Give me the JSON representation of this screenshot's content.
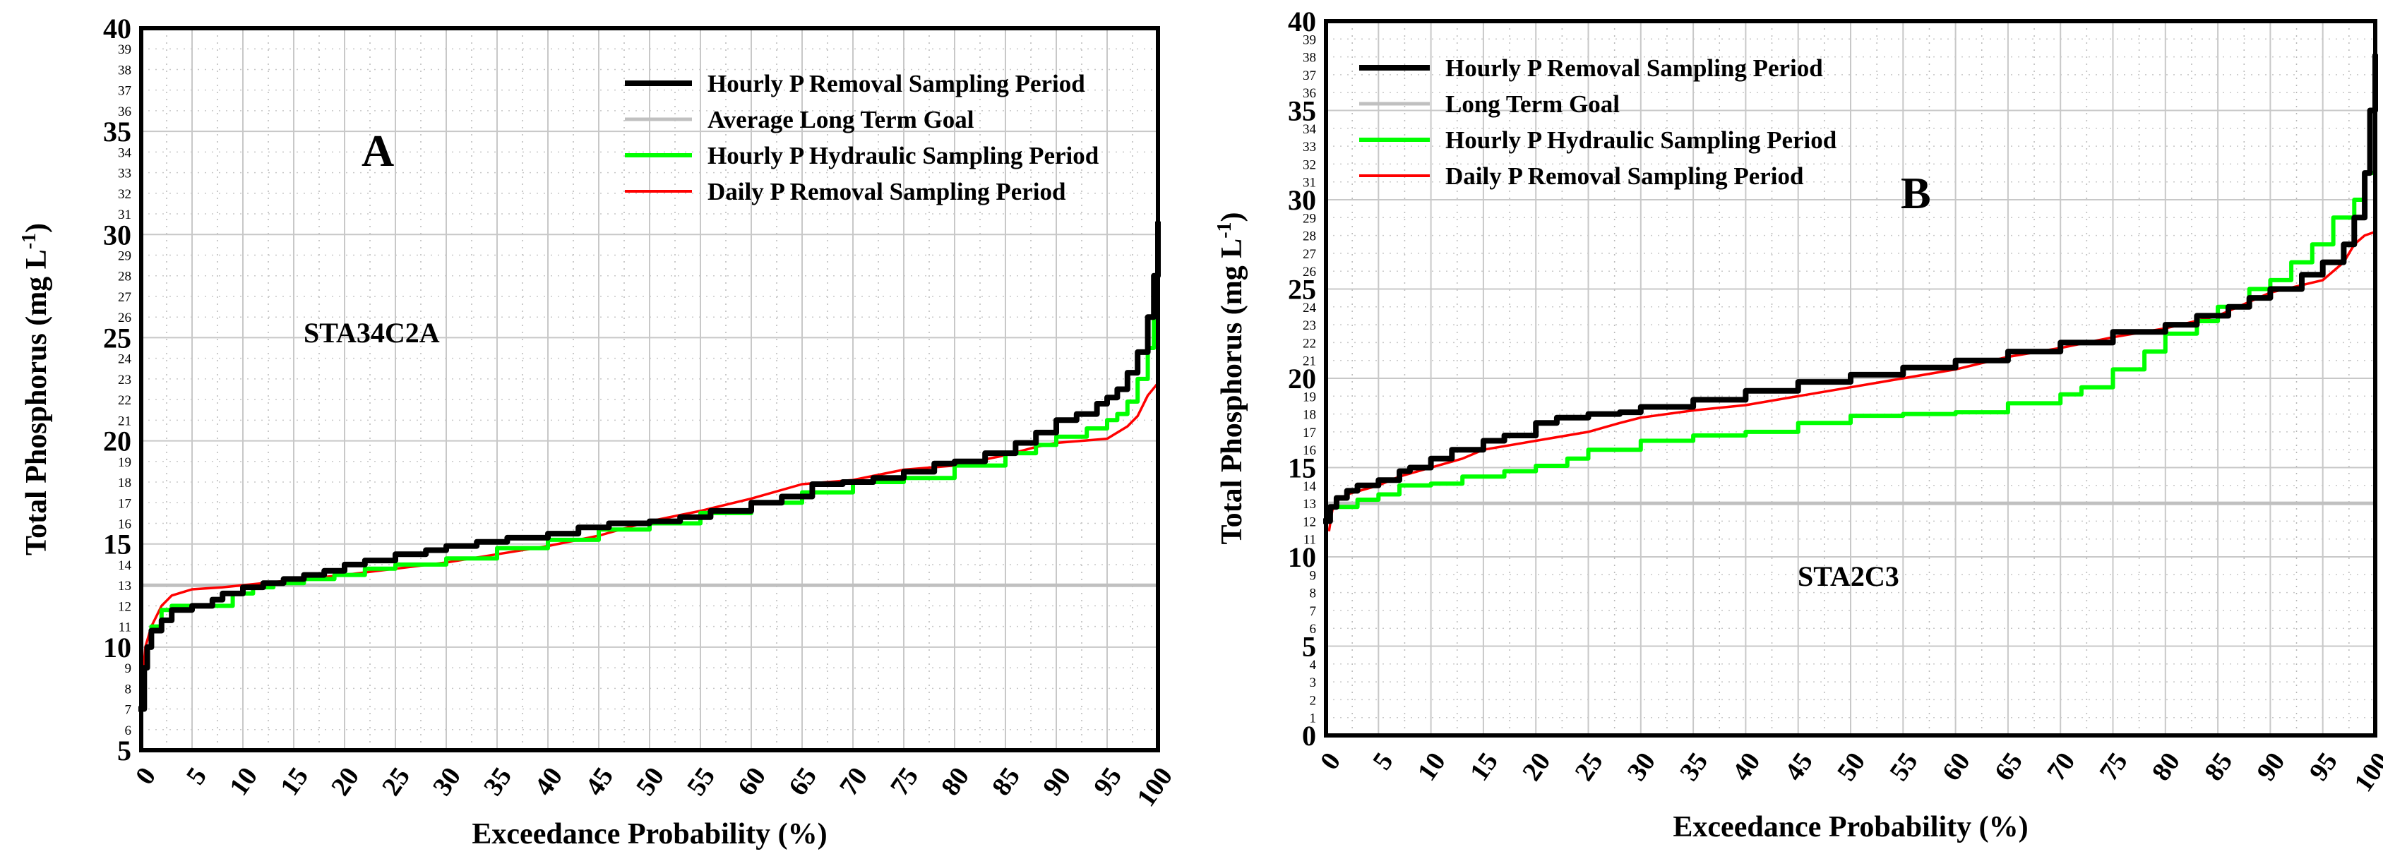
{
  "chart_data": [
    {
      "type": "line",
      "panel_label": "A",
      "station": "STA34C2A",
      "xlabel": "Exceedance Probability (%)",
      "ylabel_main": "Total Phosphorus (mg L",
      "ylabel_sup": "-1",
      "ylabel_close": ")",
      "xlim": [
        0,
        100
      ],
      "ylim": [
        5,
        40
      ],
      "xticks": [
        "0",
        "5",
        "10",
        "15",
        "20",
        "25",
        "30",
        "35",
        "40",
        "45",
        "50",
        "55",
        "60",
        "65",
        "70",
        "75",
        "80",
        "85",
        "90",
        "95",
        "100"
      ],
      "yticks_major": [
        "5",
        "10",
        "15",
        "20",
        "25",
        "30",
        "35",
        "40"
      ],
      "yticks_minor": [
        "6",
        "7",
        "8",
        "9",
        "11",
        "12",
        "13",
        "14",
        "16",
        "17",
        "18",
        "19",
        "21",
        "22",
        "23",
        "24",
        "26",
        "27",
        "28",
        "29",
        "31",
        "32",
        "33",
        "34",
        "36",
        "37",
        "38",
        "39"
      ],
      "grid": true,
      "legend_position": "top-right",
      "legend": [
        "Hourly P Removal Sampling Period",
        "Average Long Term Goal",
        "Hourly P Hydraulic Sampling Period",
        "Daily P Removal Sampling Period"
      ],
      "series": [
        {
          "name": "Hourly P Removal Sampling Period",
          "color": "#000000",
          "step": true,
          "points": [
            [
              0,
              7
            ],
            [
              0.3,
              9
            ],
            [
              0.6,
              10
            ],
            [
              1,
              10.8
            ],
            [
              2,
              11.3
            ],
            [
              3,
              11.8
            ],
            [
              5,
              12
            ],
            [
              7,
              12.3
            ],
            [
              8,
              12.6
            ],
            [
              10,
              12.9
            ],
            [
              12,
              13.1
            ],
            [
              14,
              13.3
            ],
            [
              16,
              13.5
            ],
            [
              18,
              13.7
            ],
            [
              20,
              14
            ],
            [
              22,
              14.2
            ],
            [
              25,
              14.5
            ],
            [
              28,
              14.7
            ],
            [
              30,
              14.9
            ],
            [
              33,
              15.1
            ],
            [
              36,
              15.3
            ],
            [
              40,
              15.5
            ],
            [
              43,
              15.8
            ],
            [
              46,
              16
            ],
            [
              50,
              16.1
            ],
            [
              53,
              16.3
            ],
            [
              56,
              16.6
            ],
            [
              60,
              17
            ],
            [
              63,
              17.3
            ],
            [
              66,
              17.9
            ],
            [
              69,
              18
            ],
            [
              72,
              18.2
            ],
            [
              75,
              18.5
            ],
            [
              78,
              18.9
            ],
            [
              80,
              19
            ],
            [
              83,
              19.4
            ],
            [
              86,
              19.9
            ],
            [
              88,
              20.4
            ],
            [
              90,
              21
            ],
            [
              92,
              21.3
            ],
            [
              94,
              21.8
            ],
            [
              95,
              22.1
            ],
            [
              96,
              22.5
            ],
            [
              97,
              23.3
            ],
            [
              98,
              24.3
            ],
            [
              99,
              26
            ],
            [
              99.6,
              28
            ],
            [
              100,
              30.5
            ]
          ]
        },
        {
          "name": "Average Long Term Goal",
          "color": "#c0c0c0",
          "step": false,
          "points": [
            [
              0,
              13
            ],
            [
              100,
              13
            ]
          ]
        },
        {
          "name": "Hourly P Hydraulic Sampling Period",
          "color": "#00ff00",
          "step": true,
          "points": [
            [
              0,
              7
            ],
            [
              0.3,
              9
            ],
            [
              0.6,
              10
            ],
            [
              1,
              11
            ],
            [
              2,
              11.8
            ],
            [
              3,
              12
            ],
            [
              7,
              12
            ],
            [
              9,
              12.6
            ],
            [
              11,
              12.9
            ],
            [
              13,
              13.1
            ],
            [
              16,
              13.3
            ],
            [
              19,
              13.5
            ],
            [
              22,
              13.8
            ],
            [
              25,
              14
            ],
            [
              30,
              14.3
            ],
            [
              35,
              14.8
            ],
            [
              40,
              15.2
            ],
            [
              45,
              15.7
            ],
            [
              50,
              16
            ],
            [
              55,
              16.5
            ],
            [
              60,
              17
            ],
            [
              65,
              17.5
            ],
            [
              70,
              18
            ],
            [
              75,
              18.2
            ],
            [
              80,
              18.8
            ],
            [
              85,
              19.4
            ],
            [
              88,
              19.8
            ],
            [
              90,
              20.2
            ],
            [
              93,
              20.6
            ],
            [
              95,
              21
            ],
            [
              96,
              21.3
            ],
            [
              97,
              21.9
            ],
            [
              98,
              23
            ],
            [
              99,
              24.5
            ],
            [
              99.6,
              26
            ],
            [
              100,
              27
            ]
          ]
        },
        {
          "name": "Daily P Removal Sampling Period",
          "color": "#ff0000",
          "step": false,
          "points": [
            [
              0,
              7.5
            ],
            [
              0.4,
              10
            ],
            [
              1,
              11
            ],
            [
              2,
              12
            ],
            [
              3,
              12.5
            ],
            [
              5,
              12.8
            ],
            [
              8,
              12.9
            ],
            [
              12,
              13.1
            ],
            [
              16,
              13.3
            ],
            [
              20,
              13.5
            ],
            [
              25,
              13.8
            ],
            [
              30,
              14.1
            ],
            [
              35,
              14.5
            ],
            [
              40,
              14.9
            ],
            [
              45,
              15.4
            ],
            [
              50,
              16.1
            ],
            [
              55,
              16.6
            ],
            [
              60,
              17.2
            ],
            [
              65,
              17.9
            ],
            [
              70,
              18.1
            ],
            [
              75,
              18.6
            ],
            [
              80,
              18.8
            ],
            [
              85,
              19.3
            ],
            [
              88,
              19.7
            ],
            [
              90,
              19.9
            ],
            [
              95,
              20.1
            ],
            [
              97,
              20.7
            ],
            [
              98,
              21.2
            ],
            [
              99,
              22.2
            ],
            [
              100,
              22.8
            ]
          ]
        }
      ]
    },
    {
      "type": "line",
      "panel_label": "B",
      "station": "STA2C3",
      "xlabel": "Exceedance Probability (%)",
      "ylabel_main": "Total Phosphorus (mg L",
      "ylabel_sup": "-1",
      "ylabel_close": ")",
      "xlim": [
        0,
        100
      ],
      "ylim": [
        0,
        40
      ],
      "xticks": [
        "0",
        "5",
        "10",
        "15",
        "20",
        "25",
        "30",
        "35",
        "40",
        "45",
        "50",
        "55",
        "60",
        "65",
        "70",
        "75",
        "80",
        "85",
        "90",
        "95",
        "100"
      ],
      "yticks_major": [
        "0",
        "5",
        "10",
        "15",
        "20",
        "25",
        "30",
        "35",
        "40"
      ],
      "yticks_minor": [
        "1",
        "2",
        "3",
        "4",
        "6",
        "7",
        "8",
        "9",
        "11",
        "12",
        "13",
        "14",
        "16",
        "17",
        "18",
        "19",
        "21",
        "22",
        "23",
        "24",
        "26",
        "27",
        "28",
        "29",
        "31",
        "32",
        "33",
        "34",
        "36",
        "37",
        "38",
        "39"
      ],
      "grid": true,
      "legend_position": "top-left",
      "legend": [
        "Hourly P Removal Sampling Period",
        "Long Term Goal",
        "Hourly P Hydraulic  Sampling Period",
        "Daily P Removal Sampling Period"
      ],
      "series": [
        {
          "name": "Hourly P Removal Sampling Period",
          "color": "#000000",
          "step": true,
          "points": [
            [
              0,
              12
            ],
            [
              0.4,
              12.8
            ],
            [
              1,
              13.3
            ],
            [
              2,
              13.7
            ],
            [
              3,
              14
            ],
            [
              5,
              14.3
            ],
            [
              7,
              14.8
            ],
            [
              8,
              15
            ],
            [
              10,
              15.5
            ],
            [
              12,
              16
            ],
            [
              15,
              16.5
            ],
            [
              17,
              16.8
            ],
            [
              20,
              17.5
            ],
            [
              22,
              17.8
            ],
            [
              25,
              18
            ],
            [
              28,
              18.1
            ],
            [
              30,
              18.4
            ],
            [
              35,
              18.8
            ],
            [
              40,
              19.3
            ],
            [
              45,
              19.8
            ],
            [
              50,
              20.2
            ],
            [
              55,
              20.6
            ],
            [
              60,
              21
            ],
            [
              65,
              21.5
            ],
            [
              70,
              22
            ],
            [
              75,
              22.6
            ],
            [
              80,
              23
            ],
            [
              83,
              23.5
            ],
            [
              86,
              24
            ],
            [
              88,
              24.5
            ],
            [
              90,
              25
            ],
            [
              93,
              25.8
            ],
            [
              95,
              26.5
            ],
            [
              97,
              27.5
            ],
            [
              98,
              29
            ],
            [
              99,
              31.5
            ],
            [
              99.5,
              35
            ],
            [
              100,
              38
            ]
          ]
        },
        {
          "name": "Long Term Goal",
          "color": "#c0c0c0",
          "step": false,
          "points": [
            [
              0,
              13
            ],
            [
              100,
              13
            ]
          ]
        },
        {
          "name": "Hourly P Hydraulic  Sampling Period",
          "color": "#00ff00",
          "step": true,
          "points": [
            [
              0,
              12.8
            ],
            [
              3,
              13.2
            ],
            [
              5,
              13.5
            ],
            [
              7,
              14
            ],
            [
              10,
              14.1
            ],
            [
              13,
              14.5
            ],
            [
              17,
              14.8
            ],
            [
              20,
              15.1
            ],
            [
              23,
              15.5
            ],
            [
              25,
              16
            ],
            [
              30,
              16.5
            ],
            [
              35,
              16.8
            ],
            [
              40,
              17
            ],
            [
              45,
              17.5
            ],
            [
              50,
              17.9
            ],
            [
              55,
              18
            ],
            [
              60,
              18.1
            ],
            [
              65,
              18.6
            ],
            [
              70,
              19.1
            ],
            [
              72,
              19.5
            ],
            [
              75,
              20.5
            ],
            [
              78,
              21.5
            ],
            [
              80,
              22.5
            ],
            [
              83,
              23.2
            ],
            [
              85,
              24
            ],
            [
              88,
              25
            ],
            [
              90,
              25.5
            ],
            [
              92,
              26.5
            ],
            [
              94,
              27.5
            ],
            [
              96,
              29
            ],
            [
              98,
              30
            ],
            [
              99,
              31.5
            ],
            [
              100,
              33
            ]
          ]
        },
        {
          "name": "Daily P Removal Sampling Period",
          "color": "#ff0000",
          "step": false,
          "points": [
            [
              0.3,
              11.5
            ],
            [
              0.6,
              12.6
            ],
            [
              1,
              13.1
            ],
            [
              2,
              13.5
            ],
            [
              5,
              14
            ],
            [
              7,
              14.5
            ],
            [
              10,
              15
            ],
            [
              13,
              15.5
            ],
            [
              15,
              16
            ],
            [
              20,
              16.5
            ],
            [
              25,
              17
            ],
            [
              28,
              17.5
            ],
            [
              30,
              17.8
            ],
            [
              35,
              18.2
            ],
            [
              40,
              18.5
            ],
            [
              45,
              19
            ],
            [
              50,
              19.5
            ],
            [
              55,
              20
            ],
            [
              60,
              20.5
            ],
            [
              65,
              21.2
            ],
            [
              70,
              21.7
            ],
            [
              75,
              22.3
            ],
            [
              80,
              22.8
            ],
            [
              85,
              23.5
            ],
            [
              90,
              24.8
            ],
            [
              95,
              25.5
            ],
            [
              97,
              26.5
            ],
            [
              98,
              27.5
            ],
            [
              99,
              28
            ],
            [
              100,
              28.2
            ]
          ]
        }
      ]
    }
  ]
}
